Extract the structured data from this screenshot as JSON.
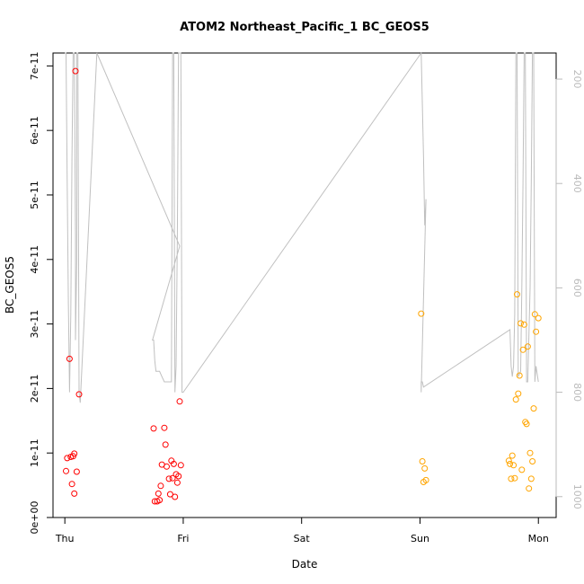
{
  "chart_data": {
    "type": "scatter",
    "title": "ATOM2 Northeast_Pacific_1 BC_GEOS5",
    "xlabel": "Date",
    "ylabel": "BC_GEOS5",
    "x_ticks": [
      {
        "label": "Thu",
        "day": 0
      },
      {
        "label": "Fri",
        "day": 1
      },
      {
        "label": "Sat",
        "day": 2
      },
      {
        "label": "Sun",
        "day": 3
      },
      {
        "label": "Mon",
        "day": 4
      }
    ],
    "xlim": [
      -0.1,
      4.15
    ],
    "y_ticks": [
      {
        "label": "0e+00",
        "value": 0
      },
      {
        "label": "1e-11",
        "value": 1e-11
      },
      {
        "label": "2e-11",
        "value": 2e-11
      },
      {
        "label": "3e-11",
        "value": 3e-11
      },
      {
        "label": "4e-11",
        "value": 4e-11
      },
      {
        "label": "5e-11",
        "value": 5e-11
      },
      {
        "label": "6e-11",
        "value": 6e-11
      },
      {
        "label": "7e-11",
        "value": 7e-11
      }
    ],
    "ylim": [
      0,
      7.2e-11
    ],
    "y2_ticks": [
      {
        "label": "200",
        "value": 200
      },
      {
        "label": "400",
        "value": 400
      },
      {
        "label": "600",
        "value": 600
      },
      {
        "label": "800",
        "value": 800
      },
      {
        "label": "1000",
        "value": 1000
      }
    ],
    "y2lim": [
      1040,
      150
    ],
    "y2_color": "#bbbbbb",
    "grid": false,
    "series": [
      {
        "color": "#ff0000",
        "points": [
          [
            0.01,
            0.72
          ],
          [
            0.02,
            0.92
          ],
          [
            0.04,
            2.46
          ],
          [
            0.05,
            0.94
          ],
          [
            0.06,
            0.52
          ],
          [
            0.07,
            0.95
          ],
          [
            0.08,
            0.37
          ],
          [
            0.08,
            0.99
          ],
          [
            0.09,
            6.92
          ],
          [
            0.1,
            0.71
          ],
          [
            0.12,
            1.91
          ],
          [
            0.75,
            1.38
          ],
          [
            0.76,
            0.25
          ],
          [
            0.78,
            0.25
          ],
          [
            0.79,
            0.37
          ],
          [
            0.8,
            0.27
          ],
          [
            0.81,
            0.49
          ],
          [
            0.82,
            0.82
          ],
          [
            0.84,
            1.39
          ],
          [
            0.85,
            1.13
          ],
          [
            0.86,
            0.79
          ],
          [
            0.88,
            0.6
          ],
          [
            0.89,
            0.36
          ],
          [
            0.9,
            0.88
          ],
          [
            0.91,
            0.61
          ],
          [
            0.92,
            0.83
          ],
          [
            0.93,
            0.32
          ],
          [
            0.94,
            0.67
          ],
          [
            0.95,
            0.54
          ],
          [
            0.96,
            0.64
          ],
          [
            0.97,
            1.8
          ],
          [
            0.98,
            0.81
          ]
        ]
      },
      {
        "color": "#ffa500",
        "points": [
          [
            3.01,
            3.16
          ],
          [
            3.02,
            0.87
          ],
          [
            3.03,
            0.55
          ],
          [
            3.04,
            0.76
          ],
          [
            3.05,
            0.58
          ],
          [
            3.75,
            0.88
          ],
          [
            3.76,
            0.83
          ],
          [
            3.77,
            0.6
          ],
          [
            3.78,
            0.96
          ],
          [
            3.79,
            0.81
          ],
          [
            3.8,
            0.61
          ],
          [
            3.81,
            1.83
          ],
          [
            3.82,
            3.46
          ],
          [
            3.83,
            1.92
          ],
          [
            3.84,
            2.2
          ],
          [
            3.85,
            3.01
          ],
          [
            3.86,
            0.74
          ],
          [
            3.87,
            2.6
          ],
          [
            3.88,
            2.99
          ],
          [
            3.89,
            1.48
          ],
          [
            3.9,
            1.45
          ],
          [
            3.91,
            2.65
          ],
          [
            3.92,
            0.45
          ],
          [
            3.93,
            1.0
          ],
          [
            3.94,
            0.6
          ],
          [
            3.95,
            0.87
          ],
          [
            3.96,
            1.69
          ],
          [
            3.97,
            3.15
          ],
          [
            3.98,
            2.88
          ],
          [
            4.0,
            3.09
          ]
        ]
      }
    ],
    "pressure_trace": {
      "color": "#c0c0c0",
      "points": [
        [
          0.0,
          150
        ],
        [
          0.01,
          150
        ],
        [
          0.02,
          400
        ],
        [
          0.03,
          630
        ],
        [
          0.04,
          800
        ],
        [
          0.05,
          650
        ],
        [
          0.06,
          350
        ],
        [
          0.07,
          150
        ],
        [
          0.08,
          150
        ],
        [
          0.09,
          500
        ],
        [
          0.09,
          700
        ],
        [
          0.1,
          550
        ],
        [
          0.1,
          150
        ],
        [
          0.11,
          150
        ],
        [
          0.12,
          800
        ],
        [
          0.13,
          820
        ],
        [
          0.27,
          150
        ],
        [
          0.97,
          520
        ],
        [
          0.74,
          700
        ],
        [
          0.75,
          700
        ],
        [
          0.76,
          740
        ],
        [
          0.77,
          760
        ],
        [
          0.78,
          760
        ],
        [
          0.79,
          760
        ],
        [
          0.8,
          760
        ],
        [
          0.82,
          770
        ],
        [
          0.84,
          780
        ],
        [
          0.86,
          780
        ],
        [
          0.87,
          780
        ],
        [
          0.88,
          780
        ],
        [
          0.89,
          780
        ],
        [
          0.9,
          780
        ],
        [
          0.91,
          150
        ],
        [
          0.92,
          150
        ],
        [
          0.93,
          800
        ],
        [
          0.94,
          750
        ],
        [
          0.95,
          500
        ],
        [
          0.96,
          150
        ],
        [
          0.97,
          150
        ],
        [
          0.98,
          150
        ],
        [
          0.99,
          800
        ],
        [
          1.0,
          800
        ],
        [
          3.01,
          150
        ],
        [
          3.03,
          350
        ],
        [
          3.04,
          480
        ],
        [
          3.05,
          430
        ],
        [
          3.01,
          800
        ],
        [
          3.01,
          780
        ],
        [
          3.02,
          780
        ],
        [
          3.03,
          790
        ],
        [
          3.76,
          680
        ],
        [
          3.77,
          750
        ],
        [
          3.78,
          770
        ],
        [
          3.79,
          750
        ],
        [
          3.8,
          650
        ],
        [
          3.81,
          150
        ],
        [
          3.82,
          150
        ],
        [
          3.83,
          770
        ],
        [
          3.85,
          760
        ],
        [
          3.86,
          600
        ],
        [
          3.87,
          400
        ],
        [
          3.88,
          150
        ],
        [
          3.89,
          150
        ],
        [
          3.9,
          780
        ],
        [
          3.91,
          780
        ],
        [
          3.93,
          600
        ],
        [
          3.94,
          400
        ],
        [
          3.95,
          150
        ],
        [
          3.96,
          150
        ],
        [
          3.97,
          780
        ],
        [
          3.98,
          750
        ],
        [
          4.0,
          780
        ]
      ]
    }
  }
}
